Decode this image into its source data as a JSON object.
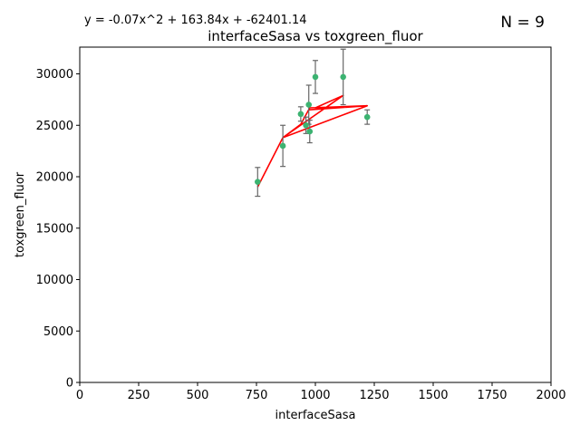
{
  "chart_data": {
    "type": "scatter",
    "title": "interfaceSasa vs toxgreen_fluor",
    "equation": "y = -0.07x^2 + 163.84x + -62401.14",
    "n_label": "N = 9",
    "xlabel": "interfaceSasa",
    "ylabel": "toxgreen_fluor",
    "xlim": [
      0,
      2000
    ],
    "ylim": [
      0,
      32600
    ],
    "x_ticks": [
      0,
      250,
      500,
      750,
      1000,
      1250,
      1500,
      1750,
      2000
    ],
    "y_ticks": [
      0,
      5000,
      10000,
      15000,
      20000,
      25000,
      30000
    ],
    "grid": false,
    "points": [
      {
        "x": 755,
        "y": 19500,
        "err": 1400
      },
      {
        "x": 862,
        "y": 23000,
        "err": 2000
      },
      {
        "x": 938,
        "y": 26100,
        "err": 700
      },
      {
        "x": 960,
        "y": 25000,
        "err": 800
      },
      {
        "x": 972,
        "y": 27000,
        "err": 1900
      },
      {
        "x": 976,
        "y": 24400,
        "err": 1100
      },
      {
        "x": 1000,
        "y": 29700,
        "err": 1600
      },
      {
        "x": 1118,
        "y": 29700,
        "err": 2700
      },
      {
        "x": 1220,
        "y": 25800,
        "err": 700
      }
    ],
    "fit_curve": [
      [
        755,
        19000
      ],
      [
        862,
        23800
      ],
      [
        1220,
        26900
      ],
      [
        1000,
        26700
      ],
      [
        1118,
        27900
      ],
      [
        862,
        23800
      ],
      [
        938,
        25100
      ],
      [
        976,
        26700
      ],
      [
        1220,
        26900
      ],
      [
        972,
        26500
      ]
    ],
    "colors": {
      "points": "#3cb371",
      "fit": "#ff0000",
      "errorbars": "#666666"
    }
  }
}
